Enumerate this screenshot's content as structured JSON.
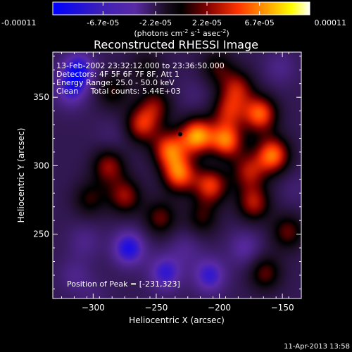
{
  "colorbar": {
    "ticks": [
      "-0.00011",
      "-6.7e-05",
      "-2.2e-05",
      "2.2e-05",
      "6.7e-05",
      "0.00011"
    ],
    "tick_values": [
      -0.00011,
      -6.7e-05,
      -2.2e-05,
      2.2e-05,
      6.7e-05,
      0.00011
    ],
    "range": [
      -0.00011,
      0.00011
    ],
    "unit_parts": {
      "a": "(photons cm",
      "b": "-2",
      "c": " s",
      "d": "-1",
      "e": " asec",
      "f": "-2",
      "g": ")"
    }
  },
  "annotations": {
    "time": "13-Feb-2002 23:32:12.000 to 23:36:50.000",
    "detectors": "Detectors: 4F 5F 6F 7F 8F, Att 1",
    "energy": "Energy Range: 25.0 - 50.0 keV",
    "clean": "Clean     Total counts: 5.44E+03",
    "peak": "Position of Peak = [-231,323]"
  },
  "footer": "11-Apr-2013 13:58",
  "chart_data": {
    "type": "heatmap",
    "title": "Reconstructed RHESSI Image",
    "xlabel": "Heliocentric X (arcsec)",
    "ylabel": "Heliocentric Y (arcsec)",
    "xlim": [
      -332,
      -135
    ],
    "ylim": [
      203,
      383
    ],
    "xticks": [
      -300,
      -250,
      -200,
      -150
    ],
    "yticks": [
      250,
      300,
      350
    ],
    "colormap": [
      "#0000ff",
      "#5a2aa6",
      "#1a0d20",
      "#000000",
      "#800000",
      "#ff3300",
      "#ffa500",
      "#ffff00",
      "#ffffff"
    ],
    "peak": [
      -231,
      323
    ],
    "sources": [
      {
        "x": -218,
        "y": 322,
        "v": 0.000105
      },
      {
        "x": -195,
        "y": 318,
        "v": 9.5e-05
      },
      {
        "x": -240,
        "y": 312,
        "v": 8.5e-05
      },
      {
        "x": -262,
        "y": 330,
        "v": 7e-05
      },
      {
        "x": -232,
        "y": 294,
        "v": 9e-05
      },
      {
        "x": -207,
        "y": 286,
        "v": 8e-05
      },
      {
        "x": -168,
        "y": 338,
        "v": 9e-05
      },
      {
        "x": -158,
        "y": 308,
        "v": 9.5e-05
      },
      {
        "x": -177,
        "y": 296,
        "v": 6e-05
      },
      {
        "x": -186,
        "y": 357,
        "v": 6e-05
      },
      {
        "x": -288,
        "y": 300,
        "v": 6e-05
      },
      {
        "x": -303,
        "y": 276,
        "v": 4e-05
      },
      {
        "x": -275,
        "y": 278,
        "v": 6e-05
      },
      {
        "x": -251,
        "y": 344,
        "v": 5e-05
      },
      {
        "x": -214,
        "y": 262,
        "v": 4e-05
      },
      {
        "x": -193,
        "y": 340,
        "v": 6e-05
      },
      {
        "x": -247,
        "y": 262,
        "v": 5e-05
      },
      {
        "x": -173,
        "y": 273,
        "v": 6.5e-05
      },
      {
        "x": -146,
        "y": 252,
        "v": 5e-05
      },
      {
        "x": -164,
        "y": 222,
        "v": 5e-05
      },
      {
        "x": -285,
        "y": 355,
        "v": 4e-05
      },
      {
        "x": -258,
        "y": 372,
        "v": 3e-05
      },
      {
        "x": -202,
        "y": 372,
        "v": 4e-05
      },
      {
        "x": -312,
        "y": 370,
        "v": -8e-05
      },
      {
        "x": -318,
        "y": 355,
        "v": -6e-05
      },
      {
        "x": -272,
        "y": 240,
        "v": -8e-05
      },
      {
        "x": -243,
        "y": 222,
        "v": -7e-05
      },
      {
        "x": -208,
        "y": 220,
        "v": -7e-05
      },
      {
        "x": -180,
        "y": 240,
        "v": -5e-05
      },
      {
        "x": -307,
        "y": 245,
        "v": -4e-05
      },
      {
        "x": -315,
        "y": 220,
        "v": -4e-05
      },
      {
        "x": -227,
        "y": 240,
        "v": -4e-05
      },
      {
        "x": -152,
        "y": 372,
        "v": -4e-05
      },
      {
        "x": -140,
        "y": 283,
        "v": -3e-05
      },
      {
        "x": -203,
        "y": 305,
        "v": -3e-05
      },
      {
        "x": -285,
        "y": 322,
        "v": -3e-05
      },
      {
        "x": -220,
        "y": 352,
        "v": -3e-05
      },
      {
        "x": -300,
        "y": 205,
        "v": -3e-05
      }
    ]
  }
}
